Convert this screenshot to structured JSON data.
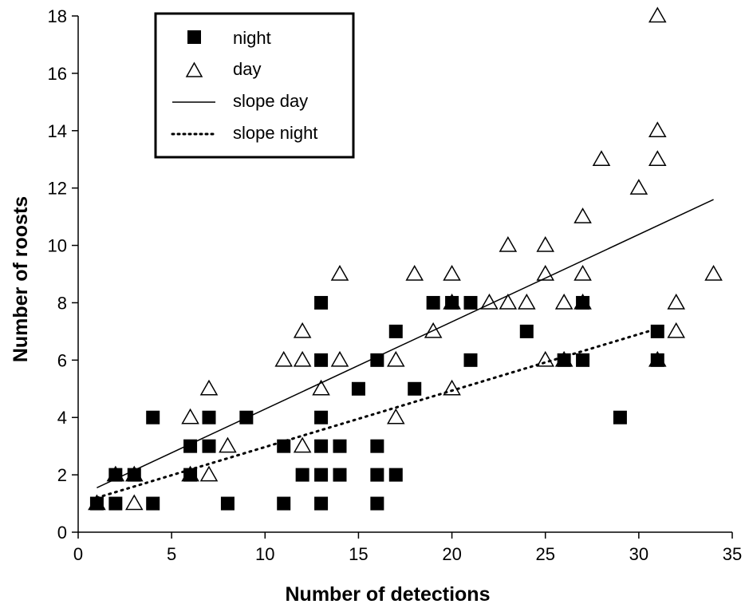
{
  "chart_data": {
    "type": "scatter",
    "xlabel": "Number of detections",
    "ylabel": "Number of roosts",
    "xlim": [
      0,
      35
    ],
    "ylim": [
      0,
      18
    ],
    "xticks": [
      "0",
      "5",
      "10",
      "15",
      "20",
      "25",
      "30",
      "35"
    ],
    "yticks": [
      "0",
      "2",
      "4",
      "6",
      "8",
      "10",
      "12",
      "14",
      "16",
      "18"
    ],
    "grid": false,
    "legend_position": "top-left",
    "series": [
      {
        "name": "night",
        "marker": "filled-square",
        "points": [
          [
            1,
            1
          ],
          [
            2,
            1
          ],
          [
            2,
            2
          ],
          [
            3,
            2
          ],
          [
            4,
            1
          ],
          [
            4,
            4
          ],
          [
            6,
            2
          ],
          [
            6,
            3
          ],
          [
            7,
            3
          ],
          [
            7,
            4
          ],
          [
            8,
            1
          ],
          [
            9,
            4
          ],
          [
            11,
            1
          ],
          [
            11,
            3
          ],
          [
            12,
            2
          ],
          [
            13,
            1
          ],
          [
            13,
            2
          ],
          [
            13,
            3
          ],
          [
            13,
            4
          ],
          [
            13,
            6
          ],
          [
            13,
            8
          ],
          [
            14,
            2
          ],
          [
            14,
            3
          ],
          [
            15,
            5
          ],
          [
            16,
            1
          ],
          [
            16,
            2
          ],
          [
            16,
            3
          ],
          [
            16,
            6
          ],
          [
            17,
            2
          ],
          [
            17,
            7
          ],
          [
            18,
            5
          ],
          [
            19,
            8
          ],
          [
            20,
            8
          ],
          [
            21,
            6
          ],
          [
            21,
            8
          ],
          [
            24,
            7
          ],
          [
            26,
            6
          ],
          [
            27,
            6
          ],
          [
            27,
            8
          ],
          [
            29,
            4
          ],
          [
            31,
            6
          ],
          [
            31,
            7
          ]
        ]
      },
      {
        "name": "day",
        "marker": "open-triangle",
        "points": [
          [
            1,
            1
          ],
          [
            2,
            2
          ],
          [
            3,
            1
          ],
          [
            3,
            2
          ],
          [
            6,
            2
          ],
          [
            6,
            4
          ],
          [
            7,
            2
          ],
          [
            7,
            5
          ],
          [
            8,
            3
          ],
          [
            11,
            6
          ],
          [
            12,
            3
          ],
          [
            12,
            6
          ],
          [
            12,
            7
          ],
          [
            13,
            5
          ],
          [
            14,
            6
          ],
          [
            14,
            9
          ],
          [
            17,
            4
          ],
          [
            17,
            6
          ],
          [
            18,
            9
          ],
          [
            19,
            7
          ],
          [
            20,
            5
          ],
          [
            20,
            8
          ],
          [
            20,
            9
          ],
          [
            22,
            8
          ],
          [
            23,
            8
          ],
          [
            23,
            10
          ],
          [
            24,
            8
          ],
          [
            25,
            6
          ],
          [
            25,
            9
          ],
          [
            25,
            10
          ],
          [
            26,
            6
          ],
          [
            26,
            8
          ],
          [
            27,
            8
          ],
          [
            27,
            9
          ],
          [
            27,
            11
          ],
          [
            28,
            13
          ],
          [
            30,
            12
          ],
          [
            31,
            6
          ],
          [
            31,
            13
          ],
          [
            31,
            14
          ],
          [
            31,
            18
          ],
          [
            32,
            7
          ],
          [
            32,
            8
          ],
          [
            34,
            9
          ]
        ]
      }
    ],
    "lines": [
      {
        "name": "slope day",
        "style": "solid",
        "x": [
          1,
          34
        ],
        "y": [
          1.55,
          11.6
        ]
      },
      {
        "name": "slope night",
        "style": "dotted",
        "x": [
          1,
          31
        ],
        "y": [
          1.2,
          7.1
        ]
      }
    ],
    "legend": [
      "night",
      "day",
      "slope day",
      "slope night"
    ]
  }
}
